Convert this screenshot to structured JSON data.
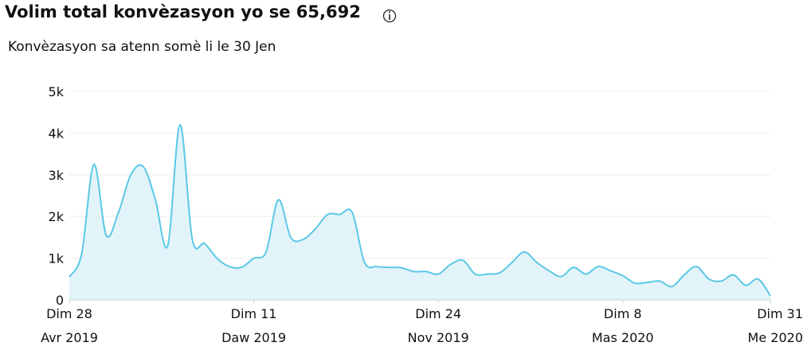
{
  "chart_data": {
    "type": "area",
    "title": "Volim total konvèzasyon yo se 65,692",
    "subtitle": "Konvèzasyon sa atenn somè li le 30 Jen",
    "x": [
      "2019-04-28",
      "2019-05-05",
      "2019-05-12",
      "2019-05-19",
      "2019-05-26",
      "2019-06-02",
      "2019-06-09",
      "2019-06-16",
      "2019-06-23",
      "2019-06-30",
      "2019-07-07",
      "2019-07-14",
      "2019-07-21",
      "2019-07-28",
      "2019-08-04",
      "2019-08-11",
      "2019-08-18",
      "2019-08-25",
      "2019-09-01",
      "2019-09-08",
      "2019-09-15",
      "2019-09-22",
      "2019-09-29",
      "2019-10-06",
      "2019-10-13",
      "2019-10-20",
      "2019-10-27",
      "2019-11-03",
      "2019-11-10",
      "2019-11-17",
      "2019-11-24",
      "2019-12-01",
      "2019-12-08",
      "2019-12-15",
      "2019-12-22",
      "2019-12-29",
      "2020-01-05",
      "2020-01-12",
      "2020-01-19",
      "2020-01-26",
      "2020-02-02",
      "2020-02-09",
      "2020-02-16",
      "2020-02-23",
      "2020-03-01",
      "2020-03-08",
      "2020-03-15",
      "2020-03-22",
      "2020-03-29",
      "2020-04-05",
      "2020-04-12",
      "2020-04-19",
      "2020-04-26",
      "2020-05-03",
      "2020-05-10",
      "2020-05-17",
      "2020-05-24",
      "2020-05-31"
    ],
    "series": [
      {
        "color": "#5bc8e6",
        "fill": "#e2f4fa",
        "values": [
          550,
          1100,
          3250,
          1550,
          2100,
          3000,
          3200,
          2400,
          1300,
          4200,
          1450,
          1350,
          1000,
          800,
          780,
          1000,
          1150,
          2400,
          1500,
          1450,
          1700,
          2050,
          2050,
          2100,
          900,
          800,
          780,
          770,
          680,
          680,
          620,
          850,
          950,
          620,
          620,
          650,
          900,
          1150,
          900,
          700,
          560,
          780,
          620,
          800,
          700,
          580,
          400,
          420,
          450,
          320,
          600,
          800,
          500,
          450,
          600,
          350,
          500,
          100
        ]
      }
    ],
    "xlim": [
      "2019-04-28",
      "2020-05-31"
    ],
    "xticks": [
      {
        "value": "2019-04-28",
        "label": [
          "Dim 28",
          "Avr 2019"
        ]
      },
      {
        "value": "2019-08-11",
        "label": [
          "Dim 11",
          "Daw 2019"
        ]
      },
      {
        "value": "2019-11-24",
        "label": [
          "Dim 24",
          "Nov 2019"
        ]
      },
      {
        "value": "2020-03-08",
        "label": [
          "Dim 8",
          "Mas 2020"
        ]
      },
      {
        "value": "2020-05-31",
        "label": [
          "Dim 31",
          "Me 2020"
        ]
      }
    ],
    "ylim": [
      0,
      5000
    ],
    "yticks": [
      {
        "value": 0,
        "label": "0"
      },
      {
        "value": 1000,
        "label": "1k"
      },
      {
        "value": 2000,
        "label": "2k"
      },
      {
        "value": 3000,
        "label": "3k"
      },
      {
        "value": 4000,
        "label": "4k"
      },
      {
        "value": 5000,
        "label": "5k"
      }
    ],
    "grid": true
  }
}
